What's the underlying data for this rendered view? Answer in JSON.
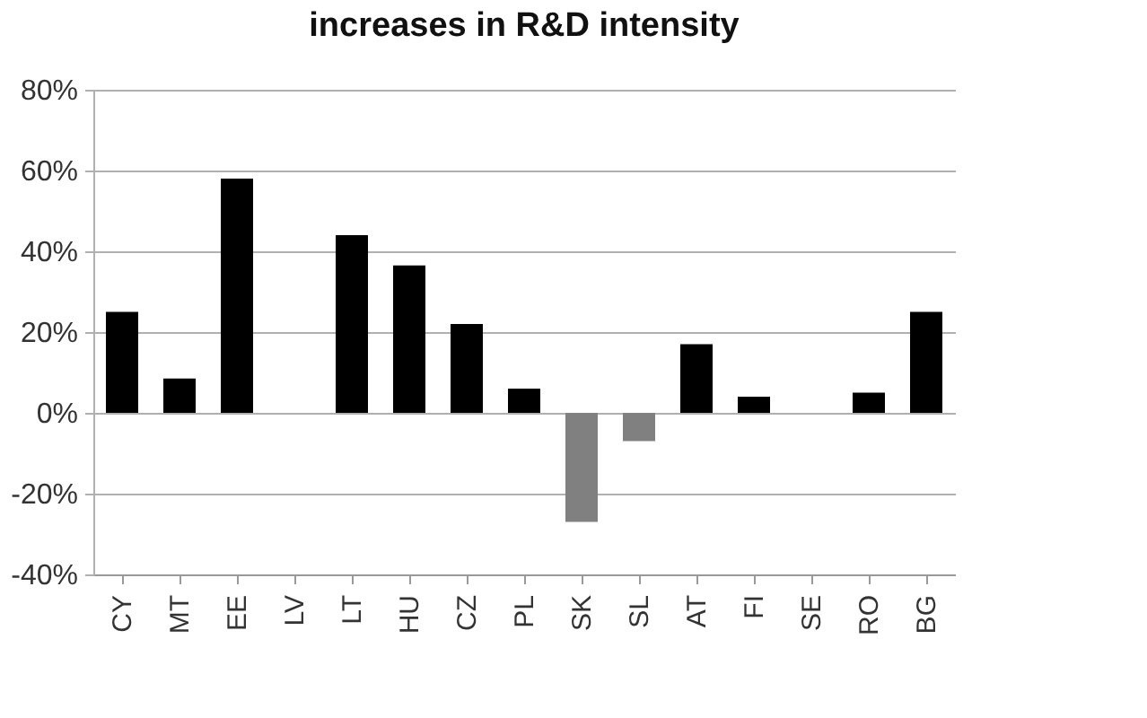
{
  "chart_data": {
    "type": "bar",
    "title": "increases in R&D intensity",
    "categories": [
      "CY",
      "MT",
      "EE",
      "LV",
      "LT",
      "HU",
      "CZ",
      "PL",
      "SK",
      "SL",
      "AT",
      "FI",
      "SE",
      "RO",
      "BG"
    ],
    "values": [
      25,
      8.5,
      58,
      0,
      44,
      36.5,
      22,
      6,
      -27,
      -7,
      17,
      4,
      0,
      5,
      25
    ],
    "colors": [
      "#000000",
      "#000000",
      "#000000",
      "#000000",
      "#000000",
      "#000000",
      "#000000",
      "#000000",
      "#808080",
      "#808080",
      "#000000",
      "#000000",
      "#000000",
      "#000000",
      "#000000"
    ],
    "ylim": [
      -40,
      80
    ],
    "yticks": [
      {
        "value": -40,
        "label": "-40%"
      },
      {
        "value": -20,
        "label": "-20%"
      },
      {
        "value": 0,
        "label": "0%"
      },
      {
        "value": 20,
        "label": "20%"
      },
      {
        "value": 40,
        "label": "40%"
      },
      {
        "value": 60,
        "label": "60%"
      },
      {
        "value": 80,
        "label": "80%"
      }
    ],
    "grid": "y"
  }
}
